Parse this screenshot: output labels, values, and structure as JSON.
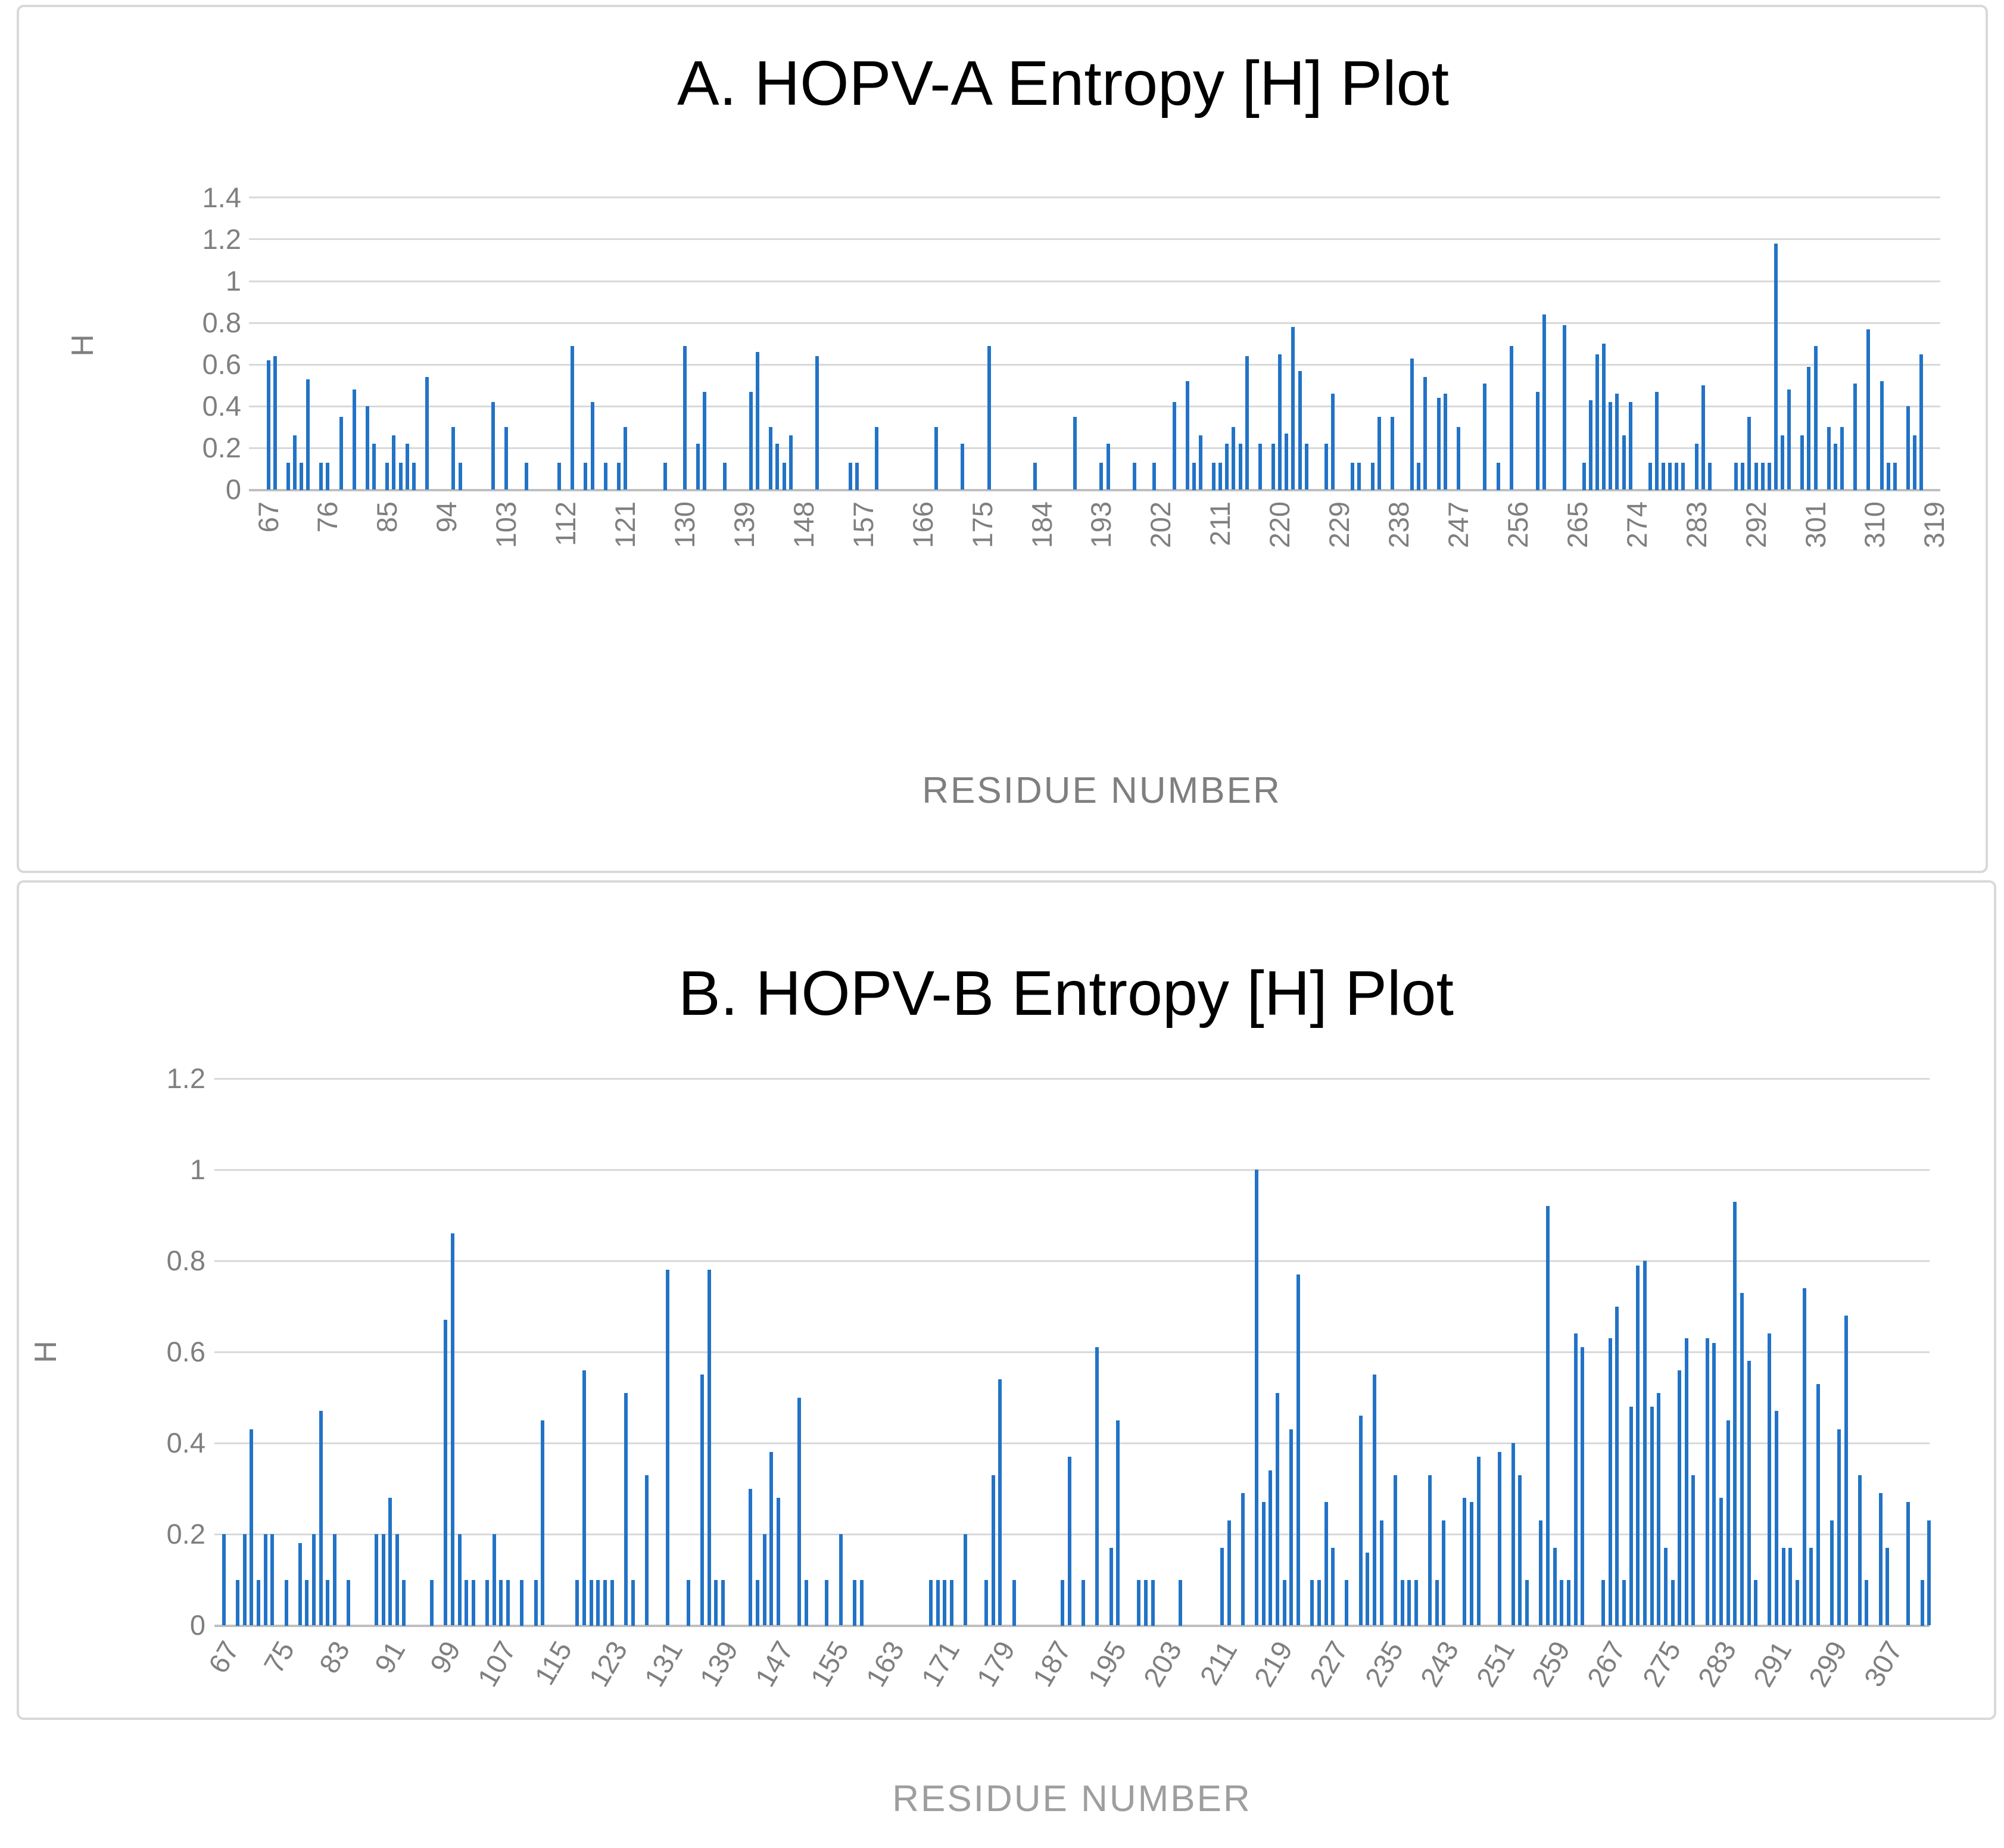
{
  "chart_data": [
    {
      "id": "A",
      "type": "bar",
      "title": "A. HOPV-A Entropy [H] Plot",
      "xlabel": "RESIDUE NUMBER",
      "ylabel": "H",
      "ylim": [
        0,
        1.4
      ],
      "ytick_labels": [
        "0",
        "0.2",
        "0.4",
        "0.6",
        "0.8",
        "1",
        "1.2",
        "1.4"
      ],
      "grid": true,
      "legend": "none",
      "bar_color": "#2273c6",
      "x_start_residue": 67,
      "xtick_step": 9,
      "xtick_labels": [
        "67",
        "76",
        "85",
        "94",
        "103",
        "112",
        "121",
        "130",
        "139",
        "148",
        "157",
        "166",
        "175",
        "184",
        "193",
        "202",
        "211",
        "220",
        "229",
        "238",
        "247",
        "256",
        "265",
        "274",
        "283",
        "292",
        "301",
        "310",
        "319"
      ],
      "values": [
        0.62,
        0.64,
        0,
        0.13,
        0.26,
        0.13,
        0.53,
        0,
        0.13,
        0.13,
        0,
        0.35,
        0,
        0.48,
        0,
        0.4,
        0.22,
        0,
        0.13,
        0.26,
        0.13,
        0.22,
        0.13,
        0,
        0.54,
        0,
        0,
        0,
        0.3,
        0.13,
        0,
        0,
        0,
        0,
        0.42,
        0,
        0.3,
        0,
        0,
        0.13,
        0,
        0,
        0,
        0,
        0.13,
        0,
        0.69,
        0,
        0.13,
        0.42,
        0,
        0.13,
        0,
        0.13,
        0.3,
        0,
        0,
        0,
        0,
        0,
        0.13,
        0,
        0,
        0.69,
        0,
        0.22,
        0.47,
        0,
        0,
        0.13,
        0,
        0,
        0,
        0.47,
        0.66,
        0,
        0.3,
        0.22,
        0.13,
        0.26,
        0,
        0,
        0,
        0.64,
        0,
        0,
        0,
        0,
        0.13,
        0.13,
        0,
        0,
        0.3,
        0,
        0,
        0,
        0,
        0,
        0,
        0,
        0,
        0.3,
        0,
        0,
        0,
        0.22,
        0,
        0,
        0,
        0.69,
        0,
        0,
        0,
        0,
        0,
        0,
        0.13,
        0,
        0,
        0,
        0,
        0,
        0.35,
        0,
        0,
        0,
        0.13,
        0.22,
        0,
        0,
        0,
        0.13,
        0,
        0,
        0.13,
        0,
        0,
        0.42,
        0,
        0.52,
        0.13,
        0.26,
        0,
        0.13,
        0.13,
        0.22,
        0.3,
        0.22,
        0.64,
        0,
        0.22,
        0,
        0.22,
        0.65,
        0.27,
        0.78,
        0.57,
        0.22,
        0,
        0,
        0.22,
        0.46,
        0,
        0,
        0.13,
        0.13,
        0,
        0.13,
        0.35,
        0,
        0.35,
        0,
        0,
        0.63,
        0.13,
        0.54,
        0,
        0.44,
        0.46,
        0,
        0.3,
        0,
        0,
        0,
        0.51,
        0,
        0.13,
        0,
        0.69,
        0,
        0,
        0,
        0.47,
        0.84,
        0,
        0,
        0.79,
        0,
        0,
        0.13,
        0.43,
        0.65,
        0.7,
        0.42,
        0.46,
        0.26,
        0.42,
        0,
        0,
        0.13,
        0.47,
        0.13,
        0.13,
        0.13,
        0.13,
        0,
        0.22,
        0.5,
        0.13,
        0,
        0,
        0,
        0.13,
        0.13,
        0.35,
        0.13,
        0.13,
        0.13,
        1.18,
        0.26,
        0.48,
        0,
        0.26,
        0.59,
        0.69,
        0,
        0.3,
        0.22,
        0.3,
        0,
        0.51,
        0,
        0.77,
        0,
        0.52,
        0.13,
        0.13,
        0,
        0.4,
        0.26,
        0.65,
        0,
        0,
        0
      ]
    },
    {
      "id": "B",
      "type": "bar",
      "title": "B. HOPV-B Entropy [H] Plot",
      "xlabel": "RESIDUE NUMBER",
      "ylabel": "H",
      "ylim": [
        0,
        1.2
      ],
      "ytick_labels": [
        "0",
        "0.2",
        "0.4",
        "0.6",
        "0.8",
        "1",
        "1.2"
      ],
      "grid": true,
      "legend": "none",
      "bar_color": "#2273c6",
      "x_start_residue": 67,
      "xtick_step": 8,
      "xtick_labels": [
        "67",
        "75",
        "83",
        "91",
        "99",
        "107",
        "115",
        "123",
        "131",
        "139",
        "147",
        "155",
        "163",
        "171",
        "179",
        "187",
        "195",
        "203",
        "211",
        "219",
        "227",
        "235",
        "243",
        "251",
        "259",
        "267",
        "275",
        "283",
        "291",
        "299",
        "307"
      ],
      "values": [
        0.2,
        0,
        0.1,
        0.2,
        0.43,
        0.1,
        0.2,
        0.2,
        0,
        0.1,
        0,
        0.18,
        0.1,
        0.2,
        0.47,
        0.1,
        0.2,
        0,
        0.1,
        0,
        0,
        0,
        0.2,
        0.2,
        0.28,
        0.2,
        0.1,
        0,
        0,
        0,
        0.1,
        0,
        0.67,
        0.86,
        0.2,
        0.1,
        0.1,
        0,
        0.1,
        0.2,
        0.1,
        0.1,
        0,
        0.1,
        0,
        0.1,
        0.45,
        0,
        0,
        0,
        0,
        0.1,
        0.56,
        0.1,
        0.1,
        0.1,
        0.1,
        0,
        0.51,
        0.1,
        0,
        0.33,
        0,
        0,
        0.78,
        0,
        0,
        0.1,
        0,
        0.55,
        0.78,
        0.1,
        0.1,
        0,
        0,
        0,
        0.3,
        0.1,
        0.2,
        0.38,
        0.28,
        0,
        0,
        0.5,
        0.1,
        0,
        0,
        0.1,
        0,
        0.2,
        0,
        0.1,
        0.1,
        0,
        0,
        0,
        0,
        0,
        0,
        0,
        0,
        0,
        0.1,
        0.1,
        0.1,
        0.1,
        0,
        0.2,
        0,
        0,
        0.1,
        0.33,
        0.54,
        0,
        0.1,
        0,
        0,
        0,
        0,
        0,
        0,
        0.1,
        0.37,
        0,
        0.1,
        0,
        0.61,
        0,
        0.17,
        0.45,
        0,
        0,
        0.1,
        0.1,
        0.1,
        0,
        0,
        0,
        0.1,
        0,
        0,
        0,
        0,
        0,
        0.17,
        0.23,
        0,
        0.29,
        0,
        1.0,
        0.27,
        0.34,
        0.51,
        0.1,
        0.43,
        0.77,
        0,
        0.1,
        0.1,
        0.27,
        0.17,
        0,
        0.1,
        0,
        0.46,
        0.16,
        0.55,
        0.23,
        0,
        0.33,
        0.1,
        0.1,
        0.1,
        0,
        0.33,
        0.1,
        0.23,
        0,
        0,
        0.28,
        0.27,
        0.37,
        0,
        0,
        0.38,
        0,
        0.4,
        0.33,
        0.1,
        0,
        0.23,
        0.92,
        0.17,
        0.1,
        0.1,
        0.64,
        0.61,
        0,
        0,
        0.1,
        0.63,
        0.7,
        0.1,
        0.48,
        0.79,
        0.8,
        0.48,
        0.51,
        0.17,
        0.1,
        0.56,
        0.63,
        0.33,
        0,
        0.63,
        0.62,
        0.28,
        0.45,
        0.93,
        0.73,
        0.58,
        0.1,
        0,
        0.64,
        0.47,
        0.17,
        0.17,
        0.1,
        0.74,
        0.17,
        0.53,
        0,
        0.23,
        0.43,
        0.68,
        0,
        0.33,
        0.1,
        0,
        0.29,
        0.17,
        0,
        0,
        0.27,
        0,
        0.1,
        0.23
      ]
    }
  ]
}
